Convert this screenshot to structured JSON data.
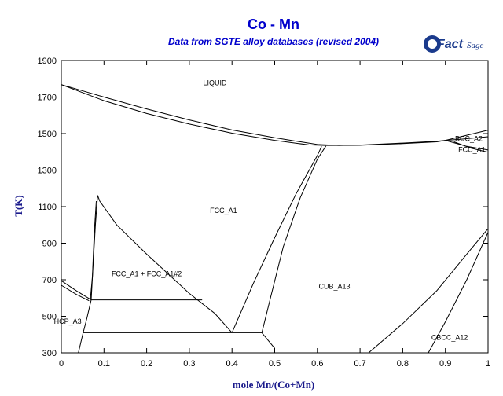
{
  "chart_data": {
    "type": "line",
    "title": "Co - Mn",
    "subtitle": "Data from SGTE alloy databases (revised 2004)",
    "xlabel": "mole Mn/(Co+Mn)",
    "ylabel": "T(K)",
    "xlim": [
      0,
      1
    ],
    "ylim": [
      300,
      1900
    ],
    "xticks": [
      "0",
      "0.1",
      "0.2",
      "0.3",
      "0.4",
      "0.5",
      "0.6",
      "0.7",
      "0.8",
      "0.9",
      "1"
    ],
    "yticks": [
      "300",
      "500",
      "700",
      "900",
      "1100",
      "1300",
      "1500",
      "1700",
      "1900"
    ],
    "regions": [
      {
        "label": "LIQUID",
        "x": 0.36,
        "y": 1765
      },
      {
        "label": "FCC_A1",
        "x": 0.38,
        "y": 1065
      },
      {
        "label": "FCC_A1 + FCC_A1#2",
        "x": 0.2,
        "y": 720
      },
      {
        "label": "HCP_A3",
        "x": 0.015,
        "y": 460
      },
      {
        "label": "CUB_A13",
        "x": 0.64,
        "y": 650
      },
      {
        "label": "BCC_A2",
        "x": 0.955,
        "y": 1460
      },
      {
        "label": "FCC_A1",
        "x": 0.962,
        "y": 1400
      },
      {
        "label": "CBCC_A12",
        "x": 0.91,
        "y": 370
      }
    ],
    "series": [
      {
        "values": [
          [
            0,
            1768
          ],
          [
            0.1,
            1700
          ],
          [
            0.2,
            1635
          ],
          [
            0.3,
            1575
          ],
          [
            0.4,
            1520
          ],
          [
            0.5,
            1477
          ],
          [
            0.6,
            1440
          ],
          [
            0.65,
            1435
          ]
        ]
      },
      {
        "values": [
          [
            0,
            1768
          ],
          [
            0.1,
            1680
          ],
          [
            0.2,
            1610
          ],
          [
            0.3,
            1552
          ],
          [
            0.4,
            1502
          ],
          [
            0.5,
            1463
          ],
          [
            0.58,
            1438
          ],
          [
            0.62,
            1435
          ]
        ]
      },
      {
        "values": [
          [
            0.62,
            1435
          ],
          [
            0.7,
            1436
          ],
          [
            0.8,
            1445
          ],
          [
            0.88,
            1455
          ],
          [
            0.9,
            1463
          ],
          [
            1,
            1519
          ]
        ]
      },
      {
        "values": [
          [
            0.65,
            1435
          ],
          [
            0.7,
            1437
          ],
          [
            0.8,
            1448
          ],
          [
            0.88,
            1458
          ],
          [
            0.91,
            1465
          ]
        ]
      },
      {
        "values": [
          [
            0.9,
            1463
          ],
          [
            0.94,
            1470
          ],
          [
            1,
            1483
          ]
        ]
      },
      {
        "values": [
          [
            0.9,
            1463
          ],
          [
            0.95,
            1430
          ],
          [
            1,
            1410
          ]
        ]
      },
      {
        "values": [
          [
            0.92,
            1455
          ],
          [
            0.96,
            1420
          ],
          [
            1,
            1398
          ]
        ]
      },
      {
        "values": [
          [
            0.4,
            410
          ],
          [
            0.45,
            680
          ],
          [
            0.5,
            930
          ],
          [
            0.55,
            1170
          ],
          [
            0.6,
            1380
          ],
          [
            0.61,
            1430
          ]
        ]
      },
      {
        "values": [
          [
            0.47,
            410
          ],
          [
            0.49,
            600
          ],
          [
            0.52,
            880
          ],
          [
            0.56,
            1150
          ],
          [
            0.6,
            1360
          ],
          [
            0.62,
            1432
          ]
        ]
      },
      {
        "values": [
          [
            0.085,
            1162
          ],
          [
            0.09,
            1130
          ],
          [
            0.13,
            1000
          ],
          [
            0.2,
            840
          ],
          [
            0.3,
            625
          ],
          [
            0.36,
            515
          ],
          [
            0.4,
            410
          ]
        ]
      },
      {
        "values": [
          [
            0.085,
            1162
          ],
          [
            0.08,
            1000
          ],
          [
            0.075,
            800
          ],
          [
            0.07,
            590
          ]
        ]
      },
      {
        "values": [
          [
            0.082,
            1130
          ],
          [
            0.077,
            950
          ],
          [
            0.073,
            720
          ],
          [
            0.068,
            590
          ]
        ]
      },
      {
        "values": [
          [
            0.07,
            590
          ],
          [
            0.33,
            590
          ]
        ]
      },
      {
        "values": [
          [
            0,
            695
          ],
          [
            0.035,
            640
          ],
          [
            0.07,
            590
          ]
        ]
      },
      {
        "values": [
          [
            0,
            670
          ],
          [
            0.035,
            620
          ],
          [
            0.065,
            585
          ]
        ]
      },
      {
        "values": [
          [
            0.07,
            590
          ],
          [
            0.06,
            490
          ],
          [
            0.05,
            400
          ],
          [
            0.04,
            300
          ]
        ]
      },
      {
        "values": [
          [
            0.05,
            410
          ],
          [
            0.47,
            410
          ]
        ]
      },
      {
        "values": [
          [
            0.47,
            410
          ],
          [
            0.5,
            325
          ]
        ]
      },
      {
        "values": [
          [
            0.72,
            300
          ],
          [
            0.8,
            460
          ],
          [
            0.88,
            640
          ],
          [
            0.95,
            840
          ],
          [
            1,
            980
          ]
        ]
      },
      {
        "values": [
          [
            0.86,
            300
          ],
          [
            0.9,
            470
          ],
          [
            0.95,
            700
          ],
          [
            1,
            960
          ]
        ]
      }
    ]
  }
}
